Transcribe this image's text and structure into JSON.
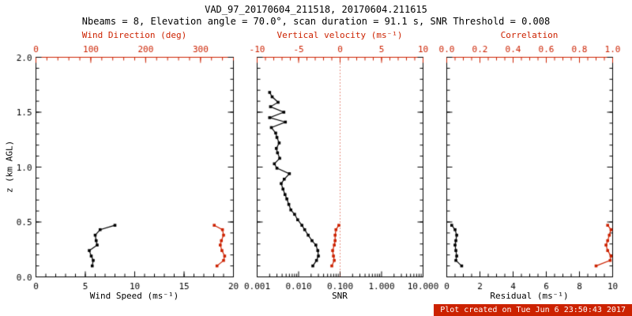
{
  "header": {
    "title": "VAD_97_20170604_211518, 20170604.211615",
    "subtitle": "Nbeams = 8, Elevation angle = 70.0°, scan duration = 91.1 s, SNR Threshold = 0.008"
  },
  "footer": {
    "created": "Plot created on Tue Jun 6 23:50:43 2017"
  },
  "colors": {
    "background": "#ffffff",
    "axis": "#000000",
    "accent_red": "#cc2200",
    "footer_text": "#ffffff"
  },
  "chart_data": [
    {
      "type": "line",
      "xlabel": "Wind Speed (ms⁻¹)",
      "x2label": "Wind Direction (deg)",
      "ylabel": "z (km AGL)",
      "xscale": "linear",
      "xlim": [
        0,
        20
      ],
      "x2lim": [
        0,
        360
      ],
      "ylim": [
        0,
        2
      ],
      "xticks": {
        "values": [
          0,
          5,
          10,
          15,
          20
        ],
        "labels": [
          "0",
          "5",
          "10",
          "15",
          "20"
        ],
        "minor": 1
      },
      "x2ticks": {
        "values": [
          0,
          100,
          200,
          300
        ],
        "labels": [
          "0",
          "100",
          "200",
          "300"
        ],
        "minor": 20
      },
      "yticks": {
        "values": [
          0,
          0.5,
          1,
          1.5,
          2
        ],
        "labels": [
          "0.0",
          "0.5",
          "1.0",
          "1.5",
          "2.0"
        ],
        "minor": 0.1
      },
      "series": [
        {
          "name": "wind-speed",
          "axis": "x1",
          "color": "#000000",
          "z": [
            0.1,
            0.15,
            0.19,
            0.24,
            0.29,
            0.33,
            0.38,
            0.43,
            0.47
          ],
          "values": [
            5.7,
            5.8,
            5.6,
            5.4,
            6.2,
            6.1,
            6.0,
            6.5,
            8.0
          ]
        },
        {
          "name": "wind-direction",
          "axis": "x2",
          "color": "#cc2200",
          "z": [
            0.1,
            0.15,
            0.19,
            0.24,
            0.29,
            0.33,
            0.38,
            0.43,
            0.47
          ],
          "values": [
            330,
            342,
            344,
            339,
            336,
            338,
            342,
            340,
            325
          ]
        }
      ]
    },
    {
      "type": "line",
      "xlabel": "SNR",
      "x2label": "Vertical velocity (ms⁻¹)",
      "ylabel": "",
      "xscale": "log",
      "xlim": [
        0.001,
        10
      ],
      "x2lim": [
        -10,
        10
      ],
      "ylim": [
        0,
        2
      ],
      "xticks": {
        "values": [
          0.001,
          0.01,
          0.1,
          1,
          10
        ],
        "labels": [
          "0.001",
          "0.010",
          "0.100",
          "1.000",
          "10.000"
        ]
      },
      "x2ticks": {
        "values": [
          -10,
          -5,
          0,
          5,
          10
        ],
        "labels": [
          "-10",
          "-5",
          "0",
          "5",
          "10"
        ],
        "minor": 1
      },
      "yticks": {
        "values": [
          0,
          0.5,
          1,
          1.5,
          2
        ],
        "labels": [],
        "minor": 0.1
      },
      "refline": {
        "axis": "x2",
        "value": 0,
        "color": "#cc2200",
        "style": "dotted"
      },
      "series": [
        {
          "name": "snr",
          "axis": "x1",
          "color": "#000000",
          "z": [
            0.1,
            0.15,
            0.19,
            0.24,
            0.29,
            0.33,
            0.38,
            0.43,
            0.47,
            0.52,
            0.57,
            0.61,
            0.66,
            0.71,
            0.75,
            0.8,
            0.85,
            0.89,
            0.94,
            0.99,
            1.03,
            1.08,
            1.13,
            1.17,
            1.22,
            1.27,
            1.31,
            1.36,
            1.41,
            1.45,
            1.5,
            1.55,
            1.59,
            1.64,
            1.68
          ],
          "values": [
            0.022,
            0.027,
            0.03,
            0.029,
            0.026,
            0.021,
            0.017,
            0.014,
            0.012,
            0.0095,
            0.008,
            0.0065,
            0.0058,
            0.0052,
            0.0047,
            0.0042,
            0.0038,
            0.0045,
            0.006,
            0.003,
            0.0026,
            0.0035,
            0.0031,
            0.0029,
            0.0034,
            0.003,
            0.0028,
            0.0022,
            0.0048,
            0.002,
            0.0044,
            0.0021,
            0.0032,
            0.0023,
            0.002
          ]
        },
        {
          "name": "vertical-velocity",
          "axis": "x2",
          "color": "#cc2200",
          "z": [
            0.1,
            0.15,
            0.19,
            0.24,
            0.29,
            0.33,
            0.38,
            0.43,
            0.47
          ],
          "values": [
            -1.0,
            -0.7,
            -0.8,
            -0.9,
            -0.7,
            -0.6,
            -0.6,
            -0.5,
            -0.15
          ]
        }
      ]
    },
    {
      "type": "line",
      "xlabel": "Residual (ms⁻¹)",
      "x2label": "Correlation",
      "ylabel": "",
      "xscale": "linear",
      "xlim": [
        0,
        10
      ],
      "x2lim": [
        0,
        1
      ],
      "ylim": [
        0,
        2
      ],
      "xticks": {
        "values": [
          0,
          2,
          4,
          6,
          8,
          10
        ],
        "labels": [
          "0",
          "2",
          "4",
          "6",
          "8",
          "10"
        ],
        "minor": 0.5
      },
      "x2ticks": {
        "values": [
          0,
          0.2,
          0.4,
          0.6,
          0.8,
          1
        ],
        "labels": [
          "0.0",
          "0.2",
          "0.4",
          "0.6",
          "0.8",
          "1.0"
        ],
        "minor": 0.05
      },
      "yticks": {
        "values": [
          0,
          0.5,
          1,
          1.5,
          2
        ],
        "labels": [],
        "minor": 0.1
      },
      "series": [
        {
          "name": "residual",
          "axis": "x1",
          "color": "#000000",
          "z": [
            0.1,
            0.15,
            0.19,
            0.24,
            0.29,
            0.33,
            0.38,
            0.43,
            0.47
          ],
          "values": [
            0.9,
            0.55,
            0.6,
            0.55,
            0.5,
            0.55,
            0.6,
            0.5,
            0.3
          ]
        },
        {
          "name": "correlation",
          "axis": "x2",
          "color": "#cc2200",
          "z": [
            0.1,
            0.15,
            0.19,
            0.24,
            0.29,
            0.33,
            0.38,
            0.43,
            0.47
          ],
          "values": [
            0.9,
            0.985,
            0.99,
            0.97,
            0.96,
            0.97,
            0.98,
            0.99,
            0.97
          ]
        }
      ]
    }
  ]
}
